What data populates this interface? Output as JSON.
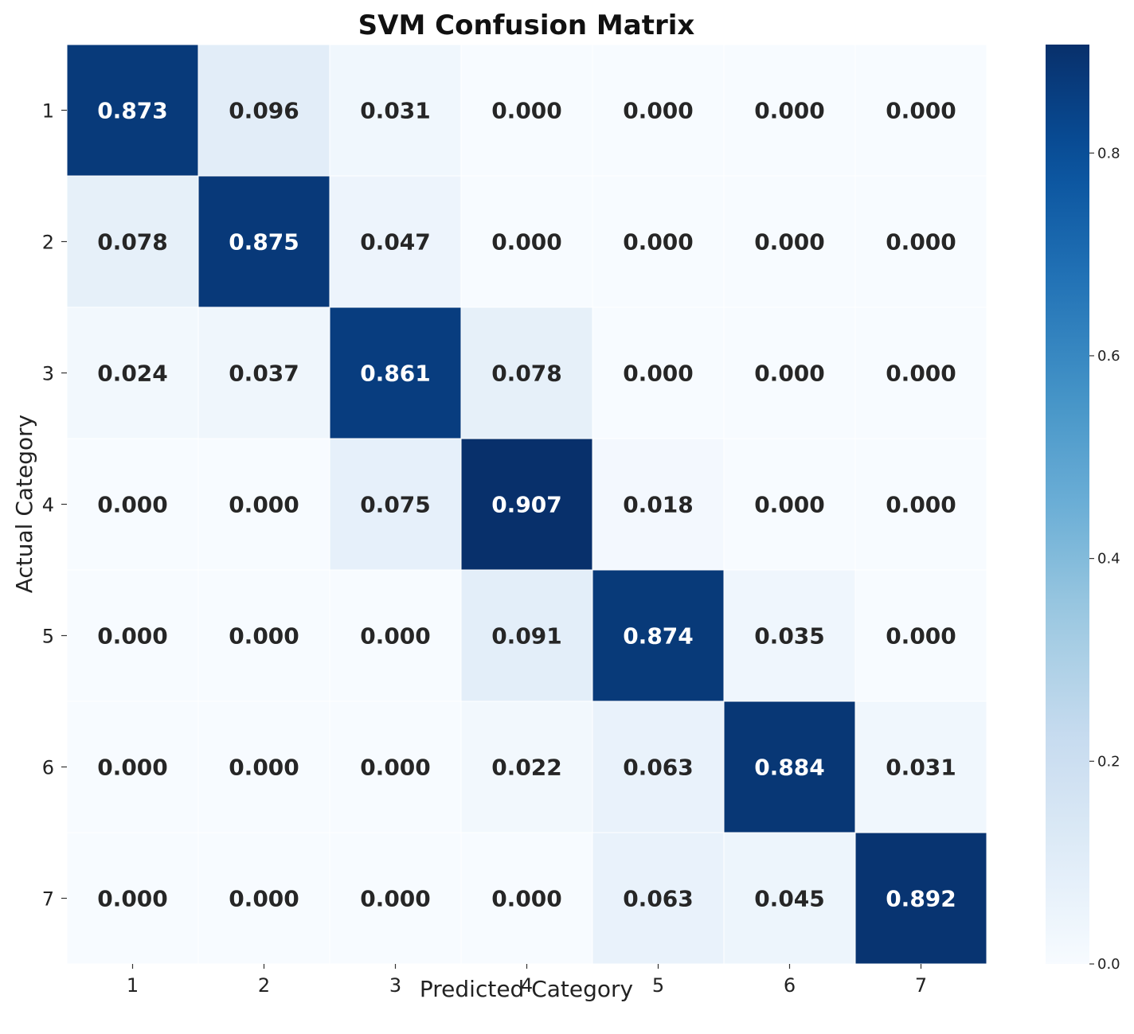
{
  "chart_data": {
    "type": "heatmap",
    "title": "SVM Confusion Matrix",
    "xlabel": "Predicted Category",
    "ylabel": "Actual Category",
    "x_categories": [
      "1",
      "2",
      "3",
      "4",
      "5",
      "6",
      "7"
    ],
    "y_categories": [
      "1",
      "2",
      "3",
      "4",
      "5",
      "6",
      "7"
    ],
    "values": [
      [
        0.873,
        0.096,
        0.031,
        0.0,
        0.0,
        0.0,
        0.0
      ],
      [
        0.078,
        0.875,
        0.047,
        0.0,
        0.0,
        0.0,
        0.0
      ],
      [
        0.024,
        0.037,
        0.861,
        0.078,
        0.0,
        0.0,
        0.0
      ],
      [
        0.0,
        0.0,
        0.075,
        0.907,
        0.018,
        0.0,
        0.0
      ],
      [
        0.0,
        0.0,
        0.0,
        0.091,
        0.874,
        0.035,
        0.0
      ],
      [
        0.0,
        0.0,
        0.0,
        0.022,
        0.063,
        0.884,
        0.031
      ],
      [
        0.0,
        0.0,
        0.0,
        0.0,
        0.063,
        0.045,
        0.892
      ]
    ],
    "value_format": "3 decimals",
    "colormap": "Blues",
    "color_range": [
      0,
      0.907
    ],
    "colorbar": {
      "ticks": [
        0.0,
        0.2,
        0.4,
        0.6,
        0.8
      ],
      "tick_labels": [
        "0.0",
        "0.2",
        "0.4",
        "0.6",
        "0.8"
      ]
    },
    "colors": {
      "low": "#f7fbff",
      "high": "#08306b",
      "text_dark": "#262626",
      "text_light": "#ffffff"
    }
  }
}
